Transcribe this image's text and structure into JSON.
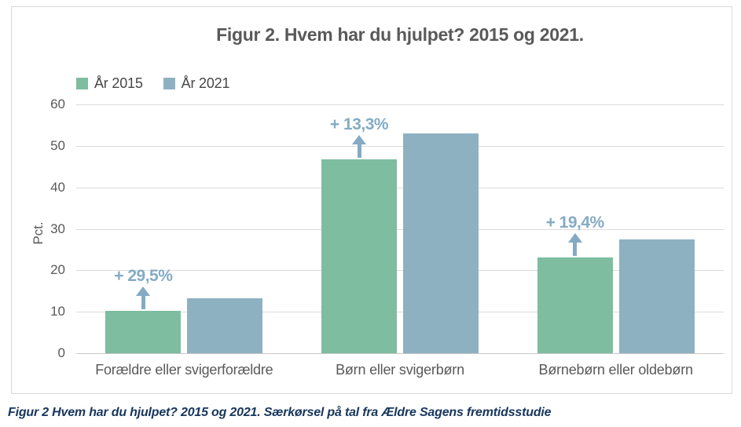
{
  "chart_data": {
    "type": "bar",
    "title": "Figur 2. Hvem har du hjulpet? 2015 og 2021.",
    "ylabel": "Pct.",
    "ylim": [
      0,
      60
    ],
    "yticks": [
      0,
      10,
      20,
      30,
      40,
      50,
      60
    ],
    "grid": true,
    "legend_position": "top-left",
    "categories": [
      "Forældre eller svigerforældre",
      "Børn eller svigerbørn",
      "Børnebørn eller oldebørn"
    ],
    "series": [
      {
        "name": "År 2015",
        "color": "#7ebda0",
        "values": [
          10.2,
          46.8,
          23.0
        ]
      },
      {
        "name": "År 2021",
        "color": "#8eb1c2",
        "values": [
          13.2,
          53.0,
          27.5
        ]
      }
    ],
    "annotations": [
      {
        "category": "Forældre eller svigerforældre",
        "text": "+ 29,5%"
      },
      {
        "category": "Børn eller svigerbørn",
        "text": "+ 13,3%"
      },
      {
        "category": "Børnebørn eller oldebørn",
        "text": "+ 19,4%"
      }
    ],
    "annotation_color": "#84abc3"
  },
  "caption": "Figur 2 Hvem har du hjulpet? 2015 og 2021. Særkørsel på tal fra Ældre Sagens fremtidsstudie"
}
